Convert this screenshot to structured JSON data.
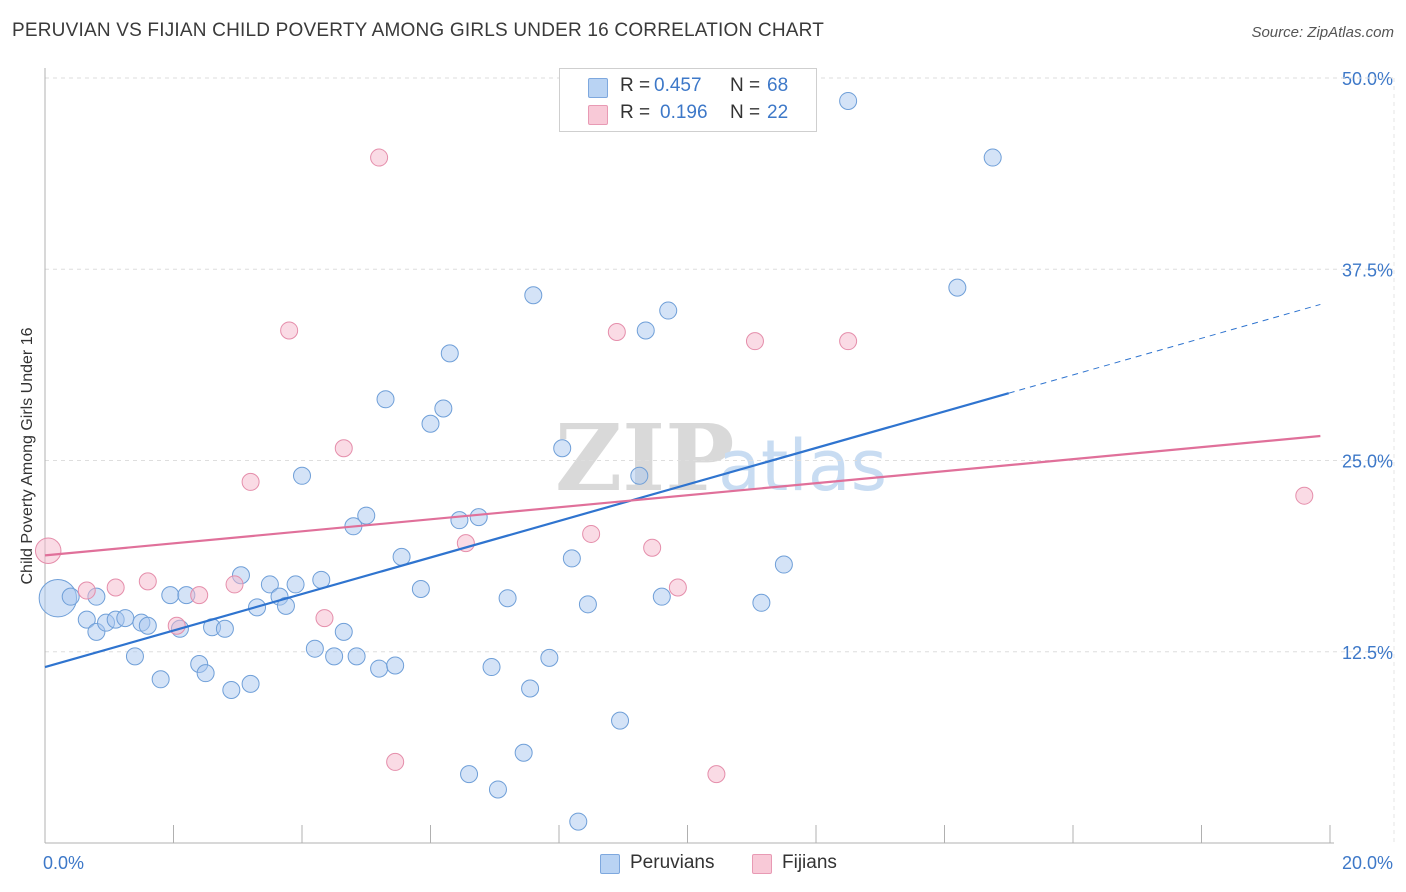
{
  "header": {
    "title": "PERUVIAN VS FIJIAN CHILD POVERTY AMONG GIRLS UNDER 16 CORRELATION CHART",
    "source": "Source: ZipAtlas.com"
  },
  "legend": {
    "rows": [
      {
        "r_label": "R =",
        "r_value": "0.457",
        "n_label": "N =",
        "n_value": "68",
        "color": "#a9c8f0"
      },
      {
        "r_label": "R =",
        "r_value": "0.196",
        "n_label": "N =",
        "n_value": "22",
        "color": "#f5b8cb"
      }
    ]
  },
  "bottom_legend": [
    {
      "label": "Peruvians",
      "color": "#a9c8f0"
    },
    {
      "label": "Fijians",
      "color": "#f5b8cb"
    }
  ],
  "watermark": {
    "zip": "ZIP",
    "atlas": "atlas"
  },
  "chart_data": {
    "type": "scatter",
    "title": "PERUVIAN VS FIJIAN CHILD POVERTY AMONG GIRLS UNDER 16 CORRELATION CHART",
    "xlabel": "",
    "ylabel": "Child Poverty Among Girls Under 16",
    "xlim": [
      0,
      20
    ],
    "ylim": [
      0,
      50
    ],
    "x_tick_labels": [
      "0.0%",
      "20.0%"
    ],
    "y_ticks": [
      12.5,
      25.0,
      37.5,
      50.0
    ],
    "y_tick_labels": [
      "12.5%",
      "25.0%",
      "37.5%",
      "50.0%"
    ],
    "grid": true,
    "legend_position": "top-center",
    "series": [
      {
        "name": "Peruvians",
        "color": "#a9c8f0",
        "stroke": "#6f9fd8",
        "points": [
          {
            "x": 0.2,
            "y": 16.0,
            "s": 2.2
          },
          {
            "x": 0.4,
            "y": 16.1
          },
          {
            "x": 0.8,
            "y": 16.1
          },
          {
            "x": 0.65,
            "y": 14.6
          },
          {
            "x": 0.8,
            "y": 13.8
          },
          {
            "x": 0.95,
            "y": 14.4
          },
          {
            "x": 1.1,
            "y": 14.6
          },
          {
            "x": 1.25,
            "y": 14.7
          },
          {
            "x": 1.5,
            "y": 14.4
          },
          {
            "x": 1.6,
            "y": 14.2
          },
          {
            "x": 1.4,
            "y": 12.2
          },
          {
            "x": 1.8,
            "y": 10.7
          },
          {
            "x": 1.95,
            "y": 16.2
          },
          {
            "x": 2.1,
            "y": 14.0
          },
          {
            "x": 2.2,
            "y": 16.2
          },
          {
            "x": 2.4,
            "y": 11.7
          },
          {
            "x": 2.5,
            "y": 11.1
          },
          {
            "x": 2.6,
            "y": 14.1
          },
          {
            "x": 2.8,
            "y": 14.0
          },
          {
            "x": 2.9,
            "y": 10.0
          },
          {
            "x": 3.05,
            "y": 17.5
          },
          {
            "x": 3.2,
            "y": 10.4
          },
          {
            "x": 3.3,
            "y": 15.4
          },
          {
            "x": 3.5,
            "y": 16.9
          },
          {
            "x": 3.65,
            "y": 16.1
          },
          {
            "x": 3.75,
            "y": 15.5
          },
          {
            "x": 3.9,
            "y": 16.9
          },
          {
            "x": 4.0,
            "y": 24.0
          },
          {
            "x": 4.2,
            "y": 12.7
          },
          {
            "x": 4.3,
            "y": 17.2
          },
          {
            "x": 4.5,
            "y": 12.2
          },
          {
            "x": 4.8,
            "y": 20.7
          },
          {
            "x": 4.65,
            "y": 13.8
          },
          {
            "x": 4.85,
            "y": 12.2
          },
          {
            "x": 5.0,
            "y": 21.4
          },
          {
            "x": 5.2,
            "y": 11.4
          },
          {
            "x": 5.3,
            "y": 29.0
          },
          {
            "x": 5.45,
            "y": 11.6
          },
          {
            "x": 5.55,
            "y": 18.7
          },
          {
            "x": 5.85,
            "y": 16.6
          },
          {
            "x": 6.0,
            "y": 27.4
          },
          {
            "x": 6.2,
            "y": 28.4
          },
          {
            "x": 6.3,
            "y": 32.0
          },
          {
            "x": 6.45,
            "y": 21.1
          },
          {
            "x": 6.6,
            "y": 4.5
          },
          {
            "x": 6.75,
            "y": 21.3
          },
          {
            "x": 6.95,
            "y": 11.5
          },
          {
            "x": 7.05,
            "y": 3.5
          },
          {
            "x": 7.2,
            "y": 16.0
          },
          {
            "x": 7.45,
            "y": 5.9
          },
          {
            "x": 7.55,
            "y": 10.1
          },
          {
            "x": 7.6,
            "y": 35.8
          },
          {
            "x": 7.85,
            "y": 12.1
          },
          {
            "x": 8.05,
            "y": 25.8
          },
          {
            "x": 8.2,
            "y": 18.6
          },
          {
            "x": 8.3,
            "y": 1.4
          },
          {
            "x": 8.45,
            "y": 15.6
          },
          {
            "x": 8.95,
            "y": 8.0
          },
          {
            "x": 9.25,
            "y": 24.0
          },
          {
            "x": 9.35,
            "y": 33.5
          },
          {
            "x": 9.6,
            "y": 16.1
          },
          {
            "x": 9.7,
            "y": 34.8
          },
          {
            "x": 11.15,
            "y": 15.7
          },
          {
            "x": 11.5,
            "y": 18.2
          },
          {
            "x": 12.5,
            "y": 48.5
          },
          {
            "x": 14.2,
            "y": 36.3
          },
          {
            "x": 14.75,
            "y": 44.8
          },
          {
            "x": 9.95,
            "y": 49.2
          }
        ]
      },
      {
        "name": "Fijians",
        "color": "#f5b8cb",
        "stroke": "#e58eab",
        "points": [
          {
            "x": 0.05,
            "y": 19.1,
            "s": 1.5
          },
          {
            "x": 0.65,
            "y": 16.5
          },
          {
            "x": 1.1,
            "y": 16.7
          },
          {
            "x": 1.6,
            "y": 17.1
          },
          {
            "x": 2.05,
            "y": 14.2
          },
          {
            "x": 2.4,
            "y": 16.2
          },
          {
            "x": 2.95,
            "y": 16.9
          },
          {
            "x": 3.2,
            "y": 23.6
          },
          {
            "x": 3.8,
            "y": 33.5
          },
          {
            "x": 4.35,
            "y": 14.7
          },
          {
            "x": 4.65,
            "y": 25.8
          },
          {
            "x": 5.2,
            "y": 44.8
          },
          {
            "x": 5.45,
            "y": 5.3
          },
          {
            "x": 6.55,
            "y": 19.6
          },
          {
            "x": 8.5,
            "y": 20.2
          },
          {
            "x": 8.9,
            "y": 33.4
          },
          {
            "x": 9.45,
            "y": 19.3
          },
          {
            "x": 9.85,
            "y": 16.7
          },
          {
            "x": 10.45,
            "y": 4.5
          },
          {
            "x": 11.05,
            "y": 32.8
          },
          {
            "x": 12.5,
            "y": 32.8
          },
          {
            "x": 19.6,
            "y": 22.7
          }
        ]
      }
    ],
    "trendlines": [
      {
        "series": "Peruvians",
        "color": "#2f74cf",
        "x0": 0,
        "y0": 11.5,
        "x1": 15.0,
        "y1": 29.4,
        "dash_to_x": 19.85,
        "dash_to_y": 35.2
      },
      {
        "series": "Fijians",
        "color": "#e0709a",
        "x0": 0,
        "y0": 18.8,
        "x1": 19.85,
        "y1": 26.6
      }
    ]
  }
}
